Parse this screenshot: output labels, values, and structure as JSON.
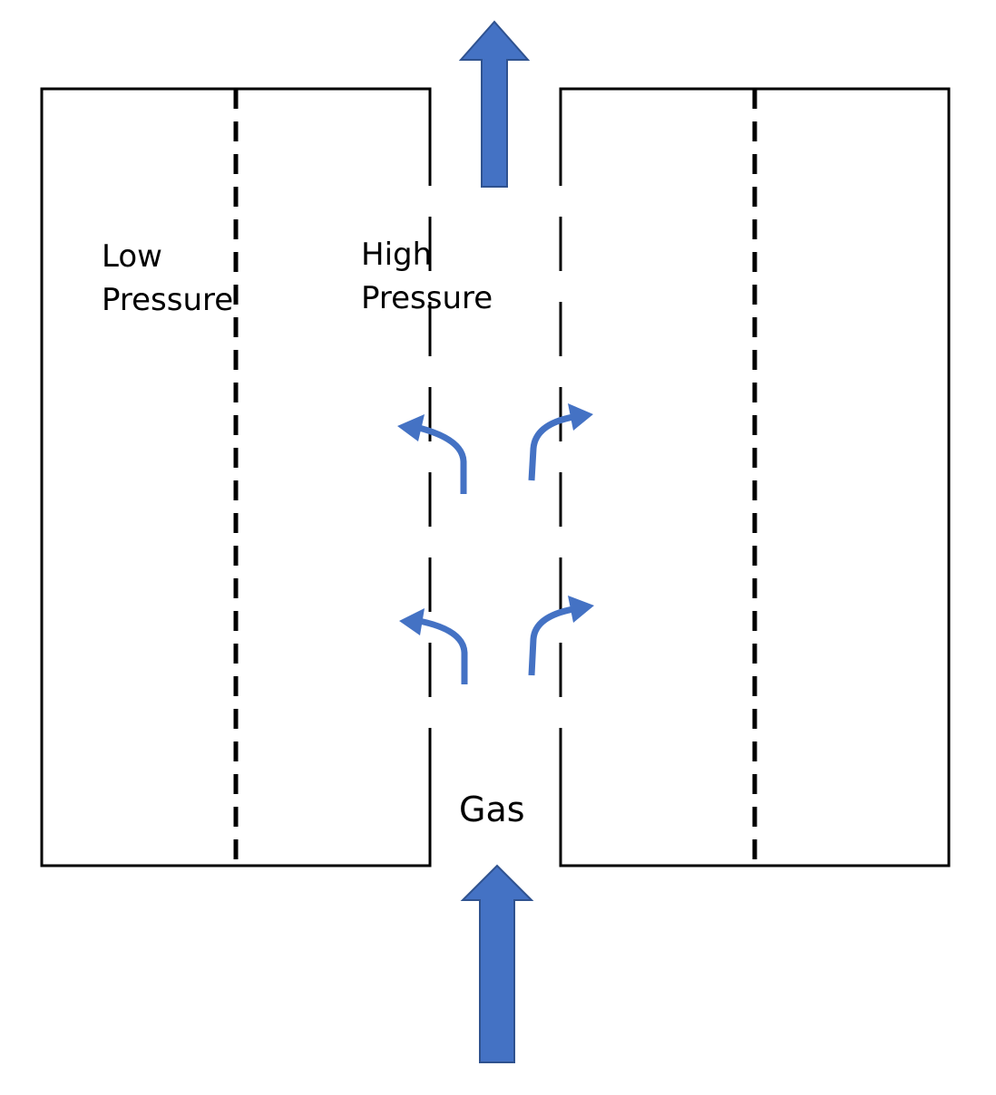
{
  "labels": {
    "low": [
      "Low",
      "Pressure"
    ],
    "high": [
      "High",
      "Pressure"
    ],
    "gas": "Gas"
  },
  "colors": {
    "arrow": "#4472C4",
    "arrow_outline": "#2F528F",
    "line": "#000000",
    "background": "#ffffff"
  }
}
